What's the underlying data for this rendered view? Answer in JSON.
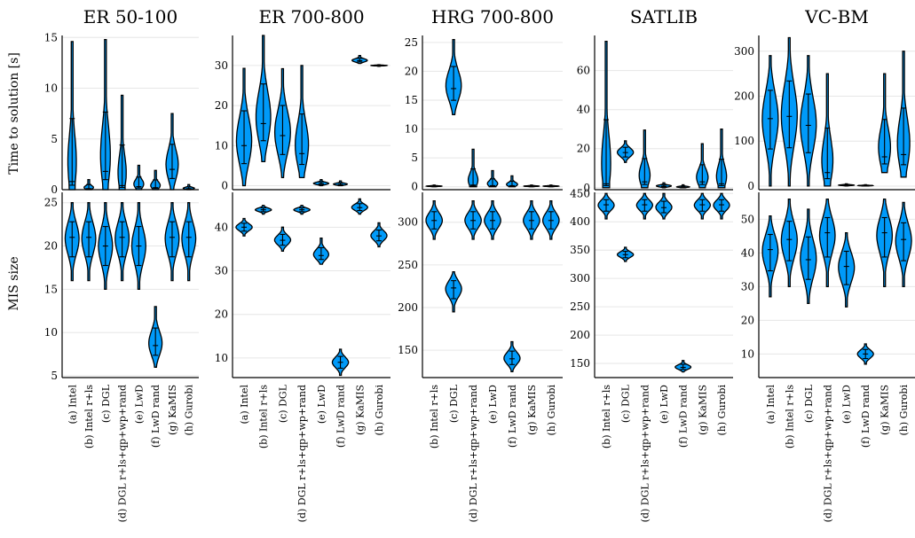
{
  "colors": {
    "violin": "#009af9",
    "outline": "#000000",
    "grid": "#e6e6e6"
  },
  "figure": {
    "row_labels": [
      "Time to solution [s]",
      "MIS size"
    ]
  },
  "chart_data": [
    {
      "type": "violin",
      "title": "ER 50-100",
      "categories": [
        "(a) Intel",
        "(b) Intel r+ls",
        "(c) DGL",
        "(d) DGL r+ls+qp+wp+rand",
        "(e) LwD",
        "(f) LwD rand",
        "(g) KaMIS",
        "(h) Gurobi"
      ],
      "time": {
        "ylim": [
          0,
          15.2
        ],
        "yticks": [
          0,
          5,
          10,
          15
        ],
        "violins": [
          [
            0,
            14.6,
            0.8
          ],
          [
            0,
            1.0,
            0.1
          ],
          [
            0,
            14.8,
            1.8
          ],
          [
            0,
            9.3,
            0.4
          ],
          [
            0,
            2.4,
            0.3
          ],
          [
            0,
            1.9,
            0.2
          ],
          [
            0,
            7.5,
            2.0
          ],
          [
            0,
            0.5,
            0.1
          ]
        ]
      },
      "mis": {
        "ylim": [
          4.8,
          26.2
        ],
        "yticks": [
          5,
          10,
          15,
          20,
          25
        ],
        "violins": [
          [
            16,
            25,
            21
          ],
          [
            16,
            25,
            21
          ],
          [
            15,
            25,
            20
          ],
          [
            16,
            25,
            21
          ],
          [
            15,
            25,
            20
          ],
          [
            6,
            13,
            8.5
          ],
          [
            16,
            25,
            21
          ],
          [
            16,
            25,
            21
          ]
        ]
      }
    },
    {
      "type": "violin",
      "title": "ER 700-800",
      "categories": [
        "(a) Intel",
        "(b) Intel r+ls",
        "(c) DGL",
        "(d) DGL r+ls+qp+wp+rand",
        "(e) LwD",
        "(f) LwD rand",
        "(g) KaMIS",
        "(h) Gurobi"
      ],
      "time": {
        "ylim": [
          -1,
          37.5
        ],
        "yticks": [
          0,
          10,
          20,
          30
        ],
        "violins": [
          [
            0,
            29.3,
            10
          ],
          [
            6,
            37.5,
            15.5
          ],
          [
            2,
            29.2,
            12.5
          ],
          [
            2,
            30,
            8
          ],
          [
            0,
            1.5,
            0.5
          ],
          [
            0,
            1.2,
            0.3
          ],
          [
            30.5,
            32.5,
            31.2
          ],
          [
            29.8,
            30.2,
            30
          ]
        ]
      },
      "mis": {
        "ylim": [
          5.5,
          48
        ],
        "yticks": [
          10,
          20,
          30,
          40
        ],
        "violins": [
          [
            38,
            42,
            40
          ],
          [
            43,
            45,
            44
          ],
          [
            34.5,
            40,
            37
          ],
          [
            43,
            45,
            44
          ],
          [
            31.5,
            37.5,
            33.5
          ],
          [
            6,
            12,
            9
          ],
          [
            43,
            46.5,
            44.5
          ],
          [
            35.5,
            41,
            38
          ]
        ]
      }
    },
    {
      "type": "violin",
      "title": "HRG 700-800",
      "categories": [
        "(b) Intel r+ls",
        "(c) DGL",
        "(d) DGL r+ls+qp+wp+rand",
        "(e) LwD",
        "(f) LwD rand",
        "(g) KaMIS",
        "(h) Gurobi"
      ],
      "time": {
        "ylim": [
          -0.5,
          26.2
        ],
        "yticks": [
          0,
          5,
          10,
          15,
          20,
          25
        ],
        "violins": [
          [
            0,
            0.3,
            0.1
          ],
          [
            12.5,
            25.5,
            17
          ],
          [
            0,
            6.5,
            0.3
          ],
          [
            0,
            2.8,
            0.2
          ],
          [
            0,
            1.9,
            0.2
          ],
          [
            0,
            0.3,
            0.1
          ],
          [
            0,
            0.3,
            0.1
          ]
        ]
      },
      "mis": {
        "ylim": [
          118,
          335
        ],
        "yticks": [
          150,
          200,
          250,
          300
        ],
        "violins": [
          [
            280,
            325,
            302
          ],
          [
            195,
            242,
            223
          ],
          [
            280,
            325,
            302
          ],
          [
            280,
            325,
            302
          ],
          [
            125,
            160,
            140
          ],
          [
            280,
            325,
            302
          ],
          [
            280,
            325,
            302
          ]
        ]
      }
    },
    {
      "type": "violin",
      "title": "SATLIB",
      "categories": [
        "(b) Intel r+ls",
        "(c) DGL",
        "(d) DGL r+ls+qp+wp+rand",
        "(e) LwD",
        "(f) LwD rand",
        "(g) KaMIS",
        "(h) Gurobi"
      ],
      "time": {
        "ylim": [
          -1,
          78
        ],
        "yticks": [
          0,
          20,
          40,
          60
        ],
        "violins": [
          [
            0,
            75,
            2
          ],
          [
            13,
            24,
            18
          ],
          [
            0,
            29.5,
            3
          ],
          [
            0,
            2.5,
            0.8
          ],
          [
            0,
            1.5,
            0.3
          ],
          [
            0,
            22.5,
            3
          ],
          [
            0,
            30,
            2
          ]
        ]
      },
      "mis": {
        "ylim": [
          125,
          452
        ],
        "yticks": [
          150,
          200,
          250,
          300,
          350,
          400,
          450
        ],
        "violins": [
          [
            405,
            450,
            430
          ],
          [
            330,
            355,
            342
          ],
          [
            405,
            450,
            430
          ],
          [
            405,
            450,
            425
          ],
          [
            135,
            155,
            143
          ],
          [
            405,
            450,
            430
          ],
          [
            405,
            450,
            430
          ]
        ]
      }
    },
    {
      "type": "violin",
      "title": "VC-BM",
      "categories": [
        "(a) Intel",
        "(b) Intel r+ls",
        "(c) DGL",
        "(d) DGL r+ls+qp+wp+rand",
        "(e) LwD",
        "(f) LwD rand",
        "(g) KaMIS",
        "(h) Gurobi"
      ],
      "time": {
        "ylim": [
          -8,
          335
        ],
        "yticks": [
          0,
          100,
          200,
          300
        ],
        "violins": [
          [
            0,
            290,
            150
          ],
          [
            0,
            330,
            155
          ],
          [
            0,
            290,
            135
          ],
          [
            0,
            250,
            30
          ],
          [
            0,
            5,
            2
          ],
          [
            0,
            3,
            1
          ],
          [
            30,
            250,
            65
          ],
          [
            20,
            300,
            70
          ]
        ]
      },
      "mis": {
        "ylim": [
          3,
          58
        ],
        "yticks": [
          10,
          20,
          30,
          40,
          50
        ],
        "violins": [
          [
            27,
            51,
            41
          ],
          [
            30,
            56,
            44
          ],
          [
            25,
            53,
            38
          ],
          [
            30,
            56,
            46
          ],
          [
            24,
            46,
            36
          ],
          [
            7,
            13,
            10
          ],
          [
            30,
            56,
            46
          ],
          [
            30,
            55,
            44
          ]
        ]
      }
    }
  ]
}
